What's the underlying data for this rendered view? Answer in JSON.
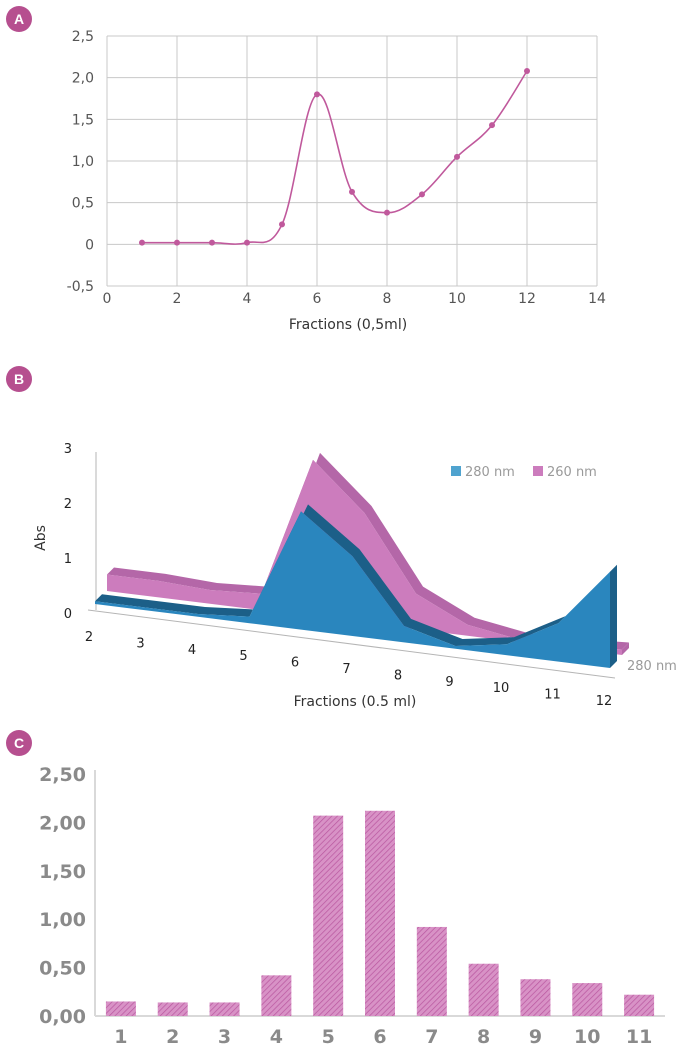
{
  "panels": {
    "a_label": "A",
    "b_label": "B",
    "c_label": "C"
  },
  "colors": {
    "pink": "#c0599c",
    "pink_3d": "#cc7cbd",
    "blue": "#2a86be",
    "blue_dark": "#1c5f88",
    "badge": "#b64f8f",
    "grid": "#c8c8c8"
  },
  "chart_data": [
    {
      "id": "A",
      "type": "line",
      "x": [
        1,
        2,
        3,
        4,
        5,
        6,
        7,
        8,
        9,
        10,
        11,
        12
      ],
      "series": [
        {
          "values": [
            0.02,
            0.02,
            0.02,
            0.02,
            0.24,
            1.8,
            0.63,
            0.38,
            0.6,
            1.05,
            1.43,
            2.08
          ]
        }
      ],
      "xlabel": "Fractions (0,5ml)",
      "ylabel": "",
      "xlim": [
        0,
        14
      ],
      "ylim": [
        -0.5,
        2.5
      ],
      "x_ticks": [
        "0",
        "2",
        "4",
        "6",
        "8",
        "10",
        "12",
        "14"
      ],
      "y_ticks": [
        "2,5",
        "2,0",
        "1,5",
        "1,0",
        "0,5",
        "0",
        "-0,5"
      ],
      "grid": true
    },
    {
      "id": "B",
      "type": "area",
      "categories": [
        "2",
        "3",
        "4",
        "5",
        "6",
        "7",
        "8",
        "9",
        "10",
        "11",
        "12"
      ],
      "series": [
        {
          "name": "280 nm",
          "values": [
            0.05,
            0.05,
            0.05,
            0.12,
            2.15,
            1.45,
            0.3,
            0.05,
            0.2,
            0.7,
            1.75
          ]
        },
        {
          "name": "260 nm",
          "values": [
            0.3,
            0.3,
            0.25,
            0.3,
            2.85,
            2.0,
            0.65,
            0.2,
            0.05,
            0.05,
            0.1
          ]
        }
      ],
      "xlabel": "Fractions (0.5 ml)",
      "ylabel": "Abs",
      "ylim": [
        0,
        3
      ],
      "y_ticks": [
        "0",
        "1",
        "2",
        "3"
      ],
      "legend": [
        "280 nm",
        "260 nm"
      ],
      "legend_position": "top-right",
      "depth_axis_label": "280 nm",
      "grid": false
    },
    {
      "id": "C",
      "type": "bar",
      "categories": [
        "1",
        "2",
        "3",
        "4",
        "5",
        "6",
        "7",
        "8",
        "9",
        "10",
        "11"
      ],
      "values": [
        0.15,
        0.14,
        0.14,
        0.42,
        2.07,
        2.12,
        0.92,
        0.54,
        0.38,
        0.34,
        0.22
      ],
      "ylim": [
        0,
        2.5
      ],
      "y_ticks": [
        "2,50",
        "2,00",
        "1,50",
        "1,00",
        "0,50",
        "0,00"
      ],
      "grid": false
    }
  ]
}
